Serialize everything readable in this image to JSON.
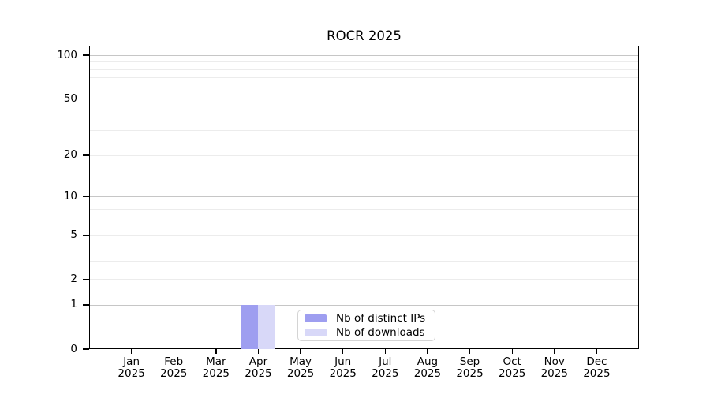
{
  "chart_data": {
    "type": "bar",
    "title": "ROCR 2025",
    "scale": "log1p",
    "ylim": [
      0,
      117
    ],
    "grid": true,
    "y_ticks": [
      0,
      1,
      2,
      5,
      10,
      20,
      50,
      100
    ],
    "y_gridlines_major": [
      1,
      10,
      100
    ],
    "y_gridlines_minor": [
      2,
      3,
      4,
      5,
      6,
      7,
      8,
      9,
      20,
      30,
      40,
      50,
      60,
      70,
      80,
      90
    ],
    "categories": [
      "Jan",
      "Feb",
      "Mar",
      "Apr",
      "May",
      "Jun",
      "Jul",
      "Aug",
      "Sep",
      "Oct",
      "Nov",
      "Dec"
    ],
    "x_tick_year": "2025",
    "series": [
      {
        "name": "Nb of distinct IPs",
        "color": "#9e9ef0",
        "values": [
          0,
          0,
          0,
          1,
          0,
          0,
          0,
          0,
          0,
          0,
          0,
          0
        ]
      },
      {
        "name": "Nb of downloads",
        "color": "#d8d8f8",
        "values": [
          0,
          0,
          0,
          1,
          0,
          0,
          0,
          0,
          0,
          0,
          0,
          0
        ]
      }
    ],
    "legend_position": "bottom-center"
  },
  "colors": {
    "axis": "#000000",
    "grid_major": "#c6c6c6",
    "grid_minor": "#ececec",
    "background": "#ffffff",
    "legend_border": "#d4d4d4"
  }
}
